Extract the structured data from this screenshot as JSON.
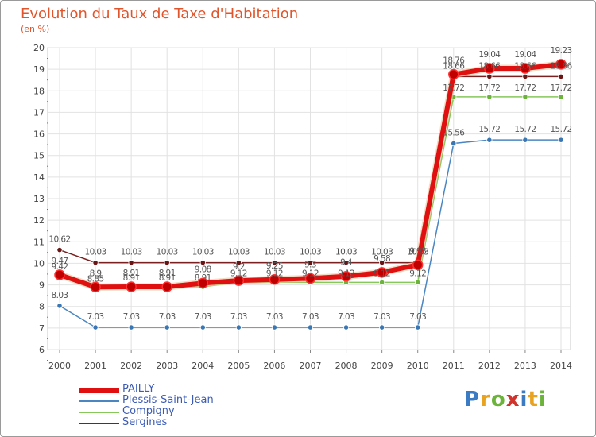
{
  "header": {
    "title": "Evolution du Taux de Taxe d'Habitation",
    "subtitle": "(en %)"
  },
  "brand": {
    "name": "Proxiti",
    "letter_colors": [
      "#3b7bc4",
      "#e8a320",
      "#6bb33a",
      "#d0342c",
      "#3b7bc4",
      "#e8a320",
      "#6bb33a"
    ]
  },
  "chart_data": {
    "type": "line",
    "x": [
      "2000",
      "2001",
      "2002",
      "2003",
      "2004",
      "2005",
      "2006",
      "2007",
      "2008",
      "2009",
      "2010",
      "2011",
      "2012",
      "2013",
      "2014"
    ],
    "ylim": [
      6,
      20
    ],
    "yticks": [
      "6",
      "7",
      "8",
      "9",
      "10",
      "11",
      "12",
      "13",
      "14",
      "15",
      "16",
      "17",
      "18",
      "19",
      "20"
    ],
    "grid": true,
    "legend_position": "bottom-left",
    "series": [
      {
        "name": "Sergines",
        "color": "#7a2020",
        "marker": "#6b1414",
        "values": [
          10.62,
          10.03,
          10.03,
          10.03,
          10.03,
          10.03,
          10.03,
          10.03,
          10.03,
          10.03,
          10.03,
          18.66,
          18.66,
          18.66,
          18.66
        ],
        "labels": [
          "10.62",
          "10.03",
          "10.03",
          "10.03",
          "10.03",
          "10.03",
          "10.03",
          "10.03",
          "10.03",
          "10.03",
          "10.03",
          "18.66",
          "18.66",
          "18.66",
          "18.66"
        ]
      },
      {
        "name": "Plessis-Saint-Jean",
        "color": "#4a86c2",
        "marker": "#3a76b2",
        "values": [
          8.03,
          7.03,
          7.03,
          7.03,
          7.03,
          7.03,
          7.03,
          7.03,
          7.03,
          7.03,
          7.03,
          15.56,
          15.72,
          15.72,
          15.72
        ],
        "labels": [
          "8.03",
          "7.03",
          "7.03",
          "7.03",
          "7.03",
          "7.03",
          "7.03",
          "7.03",
          "7.03",
          "7.03",
          "7.03",
          "15.56",
          "15.72",
          "15.72",
          "15.72"
        ]
      },
      {
        "name": "Compigny",
        "color": "#86c85a",
        "marker": "#6bb33a",
        "values": [
          9.42,
          8.85,
          8.91,
          8.91,
          8.91,
          9.12,
          9.12,
          9.12,
          9.12,
          9.12,
          9.12,
          17.72,
          17.72,
          17.72,
          17.72
        ],
        "labels": [
          "9.42",
          "8.85",
          "8.91",
          "8.91",
          "8.91",
          "9.12",
          "9.12",
          "9.12",
          "9.12",
          "9.12",
          "9.12",
          "17.72",
          "17.72",
          "17.72",
          "17.72"
        ]
      },
      {
        "name": "PAILLY",
        "color": "#e01010",
        "marker": "#c00000",
        "values": [
          9.47,
          8.9,
          8.91,
          8.91,
          9.08,
          9.2,
          9.25,
          9.3,
          9.4,
          9.58,
          9.93,
          18.76,
          19.04,
          19.04,
          19.23
        ],
        "labels": [
          "9.47",
          "8.9",
          "8.91",
          "8.91",
          "9.08",
          "9.2",
          "9.25",
          "9.3",
          "9.4",
          "9.58",
          "9.93",
          "18.76",
          "19.04",
          "19.04",
          "19.23"
        ]
      }
    ],
    "legend_order": [
      "PAILLY",
      "Plessis-Saint-Jean",
      "Compigny",
      "Sergines"
    ]
  }
}
